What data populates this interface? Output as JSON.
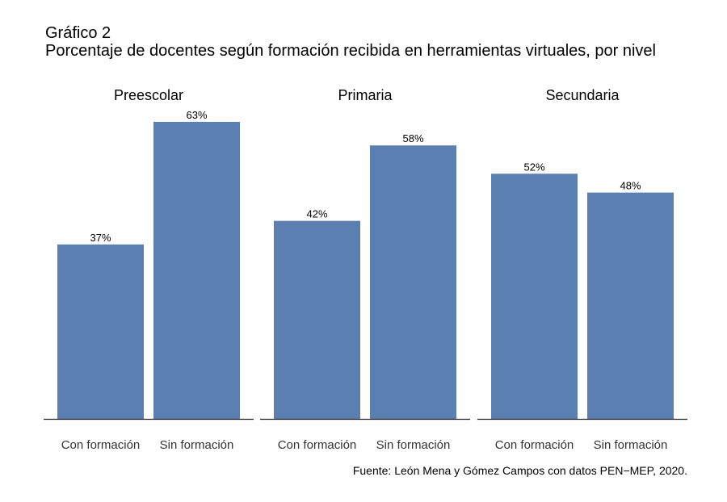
{
  "chart_data": {
    "type": "bar",
    "title": "Gráfico 2",
    "subtitle": "Porcentaje de docentes según formación recibida en herramientas virtuales, por nivel",
    "categories": [
      "Con formación",
      "Sin formación"
    ],
    "panels": [
      {
        "name": "Preescolar",
        "values": [
          37,
          63
        ],
        "labels": [
          "37%",
          "63%"
        ]
      },
      {
        "name": "Primaria",
        "values": [
          42,
          58
        ],
        "labels": [
          "42%",
          "58%"
        ]
      },
      {
        "name": "Secundaria",
        "values": [
          52,
          48
        ],
        "labels": [
          "52%",
          "48%"
        ]
      }
    ],
    "ylim": [
      0,
      63
    ],
    "grid": false,
    "bar_color": "#5b7fb0",
    "caption": "Fuente: León Mena y Gómez Campos con datos PEN−MEP, 2020."
  }
}
